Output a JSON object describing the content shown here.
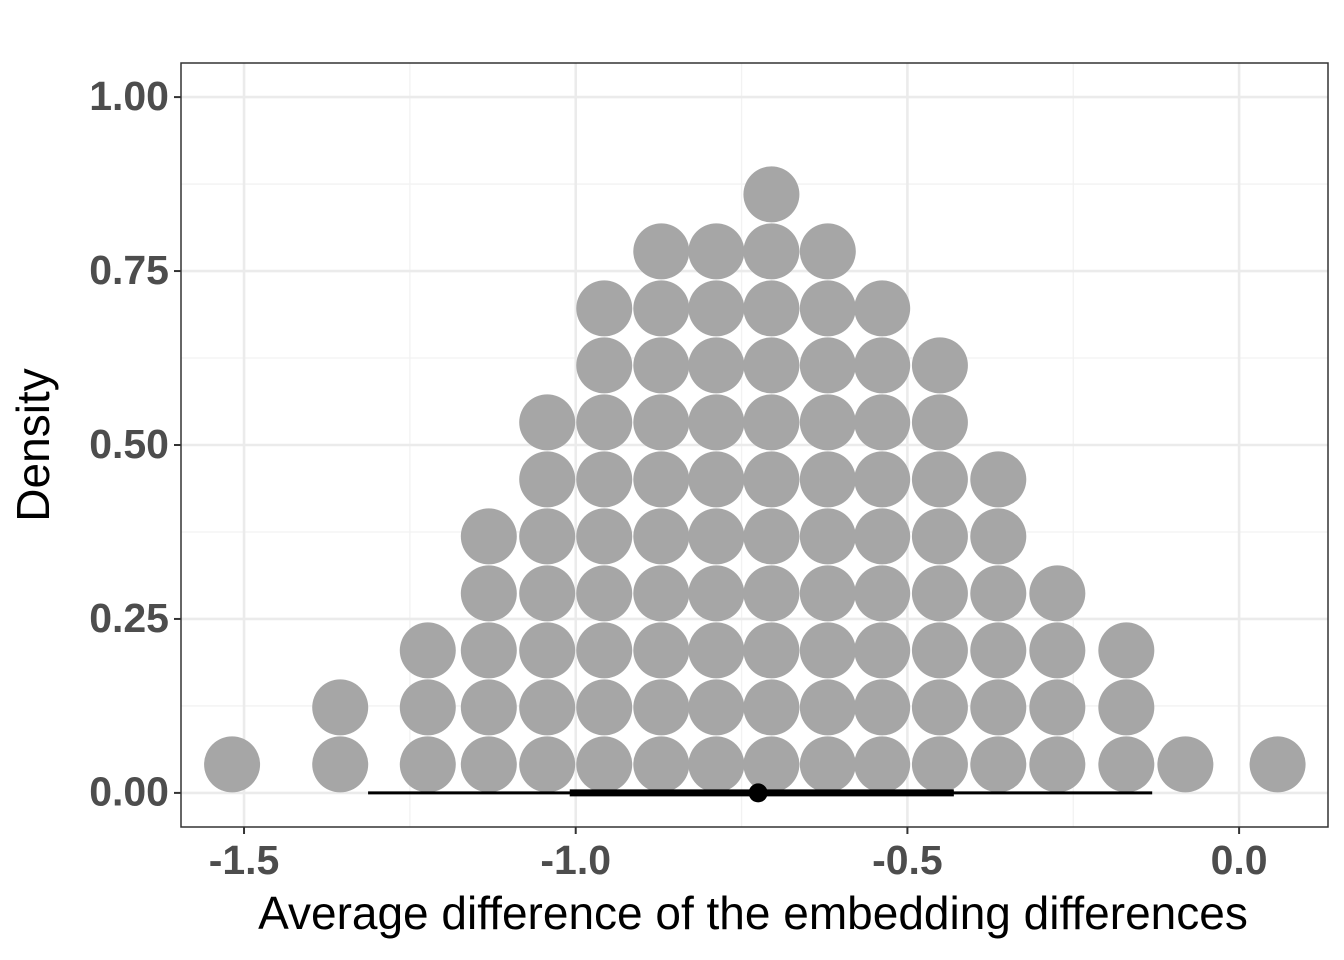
{
  "chart_data": {
    "type": "dotplot",
    "xlabel": "Average difference of the embedding differences",
    "ylabel": "Density",
    "xlim": [
      -1.595,
      0.134
    ],
    "ylim": [
      -0.049,
      1.049
    ],
    "xticks": [
      {
        "value": -1.5,
        "label": "-1.5"
      },
      {
        "value": -1.0,
        "label": "-1.0"
      },
      {
        "value": -0.5,
        "label": "-0.5"
      },
      {
        "value": 0.0,
        "label": "0.0"
      }
    ],
    "yticks": [
      {
        "value": 0,
        "label": "0.00"
      },
      {
        "value": 0.25,
        "label": "0.25"
      },
      {
        "value": 0.5,
        "label": "0.50"
      },
      {
        "value": 0.75,
        "label": "0.75"
      },
      {
        "value": 1,
        "label": "1.00"
      }
    ],
    "minor_xticks": [
      -1.25,
      -0.75,
      -0.25
    ],
    "minor_yticks": [
      0.125,
      0.375,
      0.625,
      0.875
    ],
    "grid": true,
    "color": "#a6a6a6",
    "stacks": [
      {
        "x": -1.518,
        "count": 1
      },
      {
        "x": -1.355,
        "count": 2
      },
      {
        "x": -1.223,
        "count": 3
      },
      {
        "x": -1.131,
        "count": 5
      },
      {
        "x": -1.043,
        "count": 7
      },
      {
        "x": -0.957,
        "count": 9
      },
      {
        "x": -0.871,
        "count": 10
      },
      {
        "x": -0.788,
        "count": 10
      },
      {
        "x": -0.705,
        "count": 11
      },
      {
        "x": -0.62,
        "count": 10
      },
      {
        "x": -0.538,
        "count": 9
      },
      {
        "x": -0.451,
        "count": 8
      },
      {
        "x": -0.363,
        "count": 6
      },
      {
        "x": -0.274,
        "count": 4
      },
      {
        "x": -0.17,
        "count": 3
      },
      {
        "x": -0.081,
        "count": 1
      },
      {
        "x": 0.058,
        "count": 1
      }
    ],
    "interval": {
      "point": -0.725,
      "inner": [
        -1.009,
        -0.43
      ],
      "outer": [
        -1.313,
        -0.131
      ],
      "color": "#000000"
    }
  }
}
